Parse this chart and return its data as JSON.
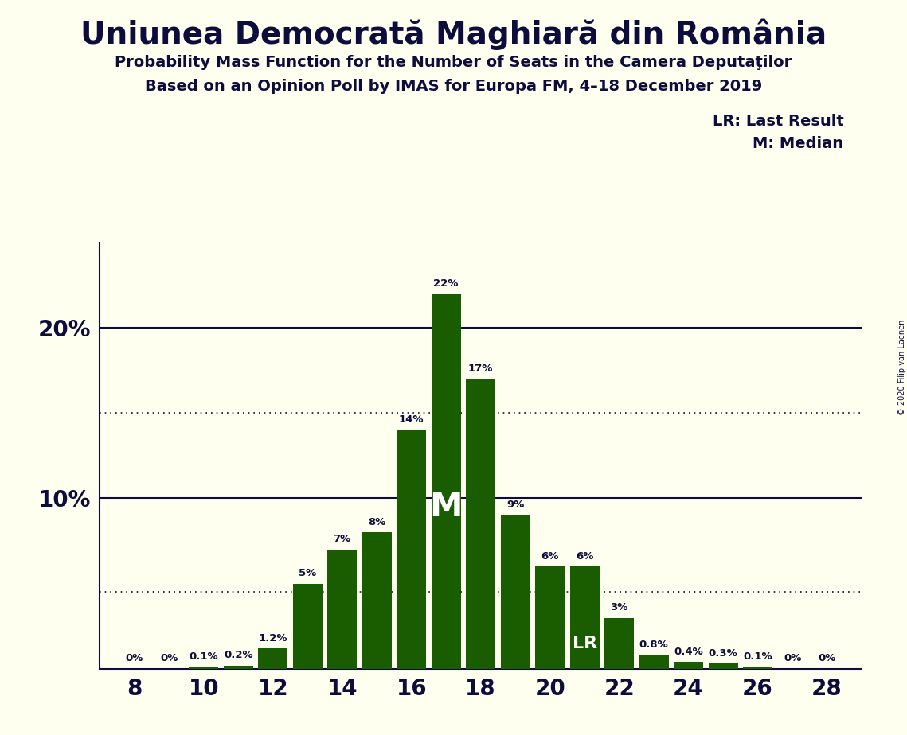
{
  "title": "Uniunea Democrată Maghiară din România",
  "subtitle1": "Probability Mass Function for the Number of Seats in the Camera Deputaţilor",
  "subtitle2": "Based on an Opinion Poll by IMAS for Europa FM, 4–18 December 2019",
  "copyright": "© 2020 Filip van Laenen",
  "categories": [
    8,
    9,
    10,
    11,
    12,
    13,
    14,
    15,
    16,
    17,
    18,
    19,
    20,
    21,
    22,
    23,
    24,
    25,
    26,
    27,
    28
  ],
  "values": [
    0.0,
    0.0,
    0.1,
    0.2,
    1.2,
    5.0,
    7.0,
    8.0,
    14.0,
    22.0,
    17.0,
    9.0,
    6.0,
    6.0,
    3.0,
    0.8,
    0.4,
    0.3,
    0.1,
    0.0,
    0.0
  ],
  "labels": [
    "0%",
    "0%",
    "0.1%",
    "0.2%",
    "1.2%",
    "5%",
    "7%",
    "8%",
    "14%",
    "22%",
    "17%",
    "9%",
    "6%",
    "6%",
    "3%",
    "0.8%",
    "0.4%",
    "0.3%",
    "0.1%",
    "0%",
    "0%"
  ],
  "bar_color": "#1a5c00",
  "background_color": "#fffff0",
  "text_color": "#0d0d3d",
  "median_x": 17,
  "lr_x": 21,
  "lr_label": "LR",
  "median_label": "M",
  "dotted_line_upper": 15.0,
  "dotted_line_lower": 4.5,
  "solid_line_10": 10.0,
  "solid_line_20": 20.0,
  "ytick_labels": [
    "10%",
    "20%"
  ],
  "ytick_values": [
    10,
    20
  ],
  "ylim": [
    0,
    25
  ],
  "xlim": [
    7.0,
    29.0
  ],
  "xtick_values": [
    8,
    10,
    12,
    14,
    16,
    18,
    20,
    22,
    24,
    26,
    28
  ],
  "xtick_labels": [
    "8",
    "10",
    "12",
    "14",
    "16",
    "18",
    "20",
    "22",
    "24",
    "26",
    "28"
  ],
  "legend_lr": "LR: Last Result",
  "legend_m": "M: Median"
}
